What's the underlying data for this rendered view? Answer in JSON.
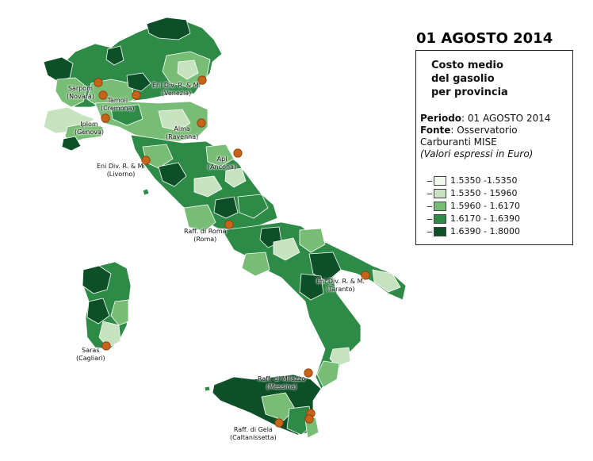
{
  "title": "01 AGOSTO 2014",
  "legend": {
    "heading": [
      "Costo medio",
      "del gasolio",
      "per provincia"
    ],
    "periodo_key": "Periodo",
    "periodo_value": ": 01 AGOSTO 2014",
    "fonte_key": "Fonte",
    "fonte_value": ": Osservatorio",
    "fonte_value_2": "Carburanti MISE",
    "note": "(Valori espressi in Euro)",
    "classes": [
      {
        "label": "1.5350 -1.5350",
        "color": "#f2f8ef"
      },
      {
        "label": "1.5350 - 15960",
        "color": "#c6e2bf"
      },
      {
        "label": "1.5960 - 1.6170",
        "color": "#78bd75"
      },
      {
        "label": "1.6170 - 1.6390",
        "color": "#2e8b47"
      },
      {
        "label": "1.6390 - 1.8000",
        "color": "#0d4f26"
      }
    ]
  },
  "refineries": [
    {
      "name": "Sarpom",
      "place": "(Novara)"
    },
    {
      "name": "Tamoil",
      "place": "(Cremona)"
    },
    {
      "name": "Eni Div. R. & M.",
      "place": "(Venezia)"
    },
    {
      "name": "Iplom",
      "place": "(Genova)"
    },
    {
      "name": "Alma",
      "place": "(Ravenna)"
    },
    {
      "name": "Eni Div. R. & M.",
      "place": "(Livorno)"
    },
    {
      "name": "Api",
      "place": "(Ancona)"
    },
    {
      "name": "Raff. di Roma",
      "place": "(Roma)"
    },
    {
      "name": "Eni Div. R. & M.",
      "place": "(Taranto)"
    },
    {
      "name": "Saras",
      "place": "(Cagliari)"
    },
    {
      "name": "Raff. di Milazzo",
      "place": "(Messina)"
    },
    {
      "name": "Raff. di Gela",
      "place": "(Caltanissetta)"
    }
  ],
  "marker_color": "#c8641a"
}
